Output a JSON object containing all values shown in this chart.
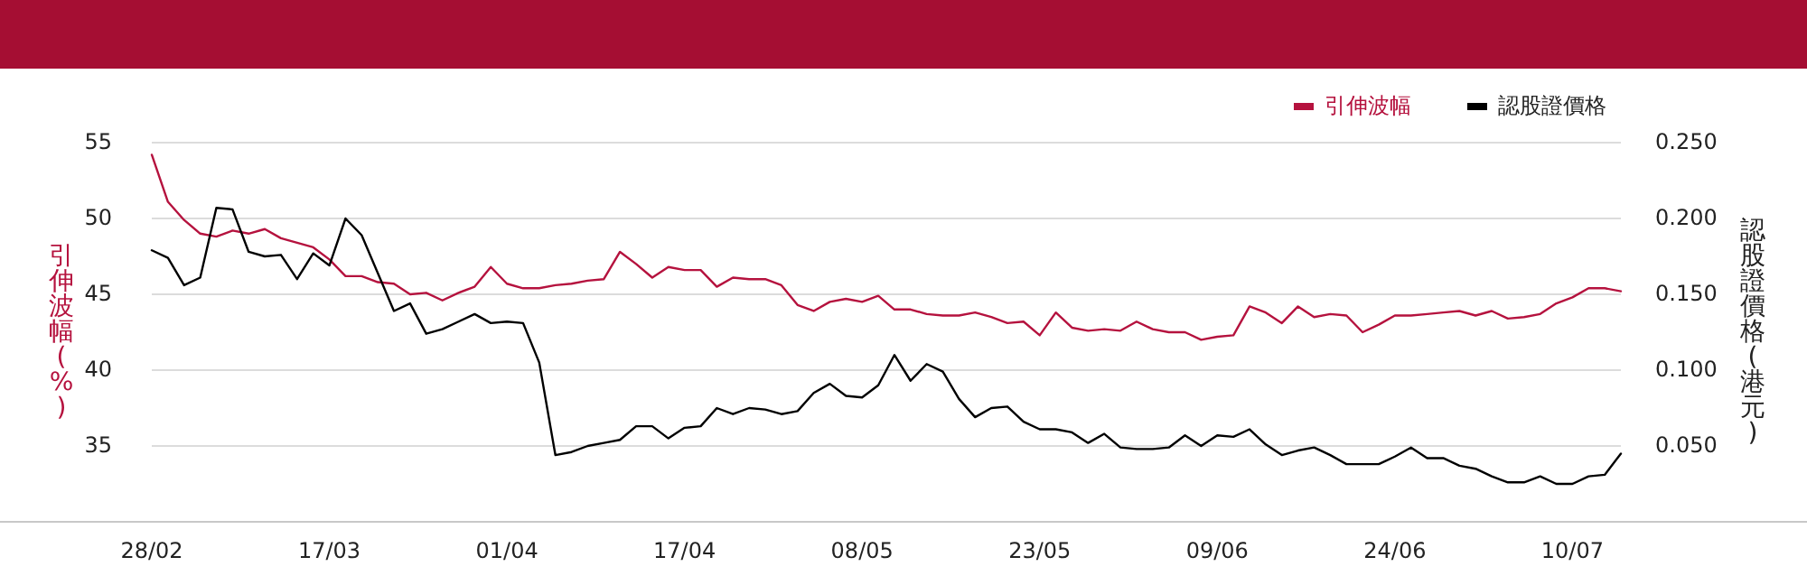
{
  "chart_data": {
    "type": "line",
    "ylabel": "引伸波幅(%)",
    "y2label": "認股證價格(港元)",
    "categories": [
      "28/02",
      null,
      null,
      null,
      null,
      null,
      null,
      null,
      null,
      null,
      null,
      "17/03",
      null,
      null,
      null,
      null,
      null,
      null,
      null,
      null,
      null,
      null,
      "01/04",
      null,
      null,
      null,
      null,
      null,
      null,
      null,
      null,
      null,
      null,
      "17/04",
      null,
      null,
      null,
      null,
      null,
      null,
      null,
      null,
      null,
      null,
      "08/05",
      null,
      null,
      null,
      null,
      null,
      null,
      null,
      null,
      null,
      null,
      "23/05",
      null,
      null,
      null,
      null,
      null,
      null,
      null,
      null,
      null,
      null,
      "09/06",
      null,
      null,
      null,
      null,
      null,
      null,
      null,
      null,
      null,
      null,
      "24/06",
      null,
      null,
      null,
      null,
      null,
      null,
      null,
      null,
      null,
      null,
      "10/07",
      null,
      null,
      null
    ],
    "series": [
      {
        "name": "引伸波幅",
        "color": "#b5123e",
        "values": [
          54.2,
          51.1,
          49.9,
          49.0,
          48.8,
          49.2,
          49.0,
          49.3,
          48.7,
          48.4,
          48.1,
          47.3,
          46.2,
          46.2,
          45.8,
          45.7,
          45.0,
          45.1,
          44.6,
          45.1,
          45.5,
          46.8,
          45.7,
          45.4,
          45.4,
          45.6,
          45.7,
          45.9,
          46.0,
          47.8,
          47.0,
          46.1,
          46.8,
          46.6,
          46.6,
          45.5,
          46.1,
          46.0,
          46.0,
          45.6,
          44.3,
          43.9,
          44.5,
          44.7,
          44.5,
          44.9,
          44.0,
          44.0,
          43.7,
          43.6,
          43.6,
          43.8,
          43.5,
          43.1,
          43.2,
          42.3,
          43.8,
          42.8,
          42.6,
          42.7,
          42.6,
          43.2,
          42.7,
          42.5,
          42.5,
          42.0,
          42.2,
          42.3,
          44.2,
          43.8,
          43.1,
          44.2,
          43.5,
          43.7,
          43.6,
          42.5,
          43.0,
          43.6,
          43.6,
          43.7,
          43.8,
          43.9,
          43.6,
          43.9,
          43.4,
          43.5,
          43.7,
          44.4,
          44.8,
          45.4,
          45.4,
          45.2
        ]
      },
      {
        "name": "認股證價格",
        "color": "#000000",
        "axis": "y2",
        "values": [
          0.179,
          0.174,
          0.156,
          0.161,
          0.207,
          0.206,
          0.178,
          0.175,
          0.176,
          0.16,
          0.177,
          0.169,
          0.2,
          0.189,
          0.164,
          0.139,
          0.144,
          0.124,
          0.127,
          0.132,
          0.137,
          0.131,
          0.132,
          0.131,
          0.105,
          0.044,
          0.046,
          0.05,
          0.052,
          0.054,
          0.063,
          0.063,
          0.055,
          0.062,
          0.063,
          0.075,
          0.071,
          0.075,
          0.074,
          0.071,
          0.073,
          0.085,
          0.091,
          0.083,
          0.082,
          0.09,
          0.11,
          0.093,
          0.104,
          0.099,
          0.081,
          0.069,
          0.075,
          0.076,
          0.066,
          0.061,
          0.061,
          0.059,
          0.052,
          0.058,
          0.049,
          0.048,
          0.048,
          0.049,
          0.057,
          0.05,
          0.057,
          0.056,
          0.061,
          0.051,
          0.044,
          0.047,
          0.049,
          0.044,
          0.038,
          0.038,
          0.038,
          0.043,
          0.049,
          0.042,
          0.042,
          0.037,
          0.035,
          0.03,
          0.026,
          0.026,
          0.03,
          0.025,
          0.025,
          0.03,
          0.031,
          0.045
        ]
      }
    ],
    "ylim": [
      30,
      55
    ],
    "yticks": [
      35,
      40,
      45,
      50,
      55
    ],
    "y2lim": [
      0,
      0.25
    ],
    "y2ticks": [
      {
        "value": 0.05,
        "label": "0.050"
      },
      {
        "value": 0.1,
        "label": "0.100"
      },
      {
        "value": 0.15,
        "label": "0.150"
      },
      {
        "value": 0.2,
        "label": "0.200"
      },
      {
        "value": 0.25,
        "label": "0.250"
      }
    ],
    "grid": "y",
    "legend": "top right",
    "line_style": "solid",
    "marker": "none"
  }
}
